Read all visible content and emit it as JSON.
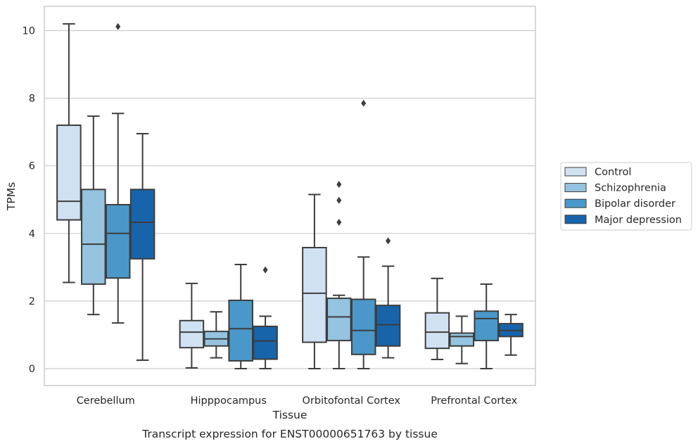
{
  "chart_data": {
    "type": "box",
    "title": "",
    "caption": "Transcript expression for ENST00000651763 by tissue",
    "xlabel": "Tissue",
    "ylabel": "TPMs",
    "ylim": [
      -0.5,
      10.7
    ],
    "yticks": [
      0,
      2,
      4,
      6,
      8,
      10
    ],
    "grid": "horizontal",
    "legend_position": "right",
    "categories": [
      "Cerebellum",
      "Hipppocampus",
      "Orbitofontal Cortex",
      "Prefrontal Cortex"
    ],
    "series": [
      {
        "name": "Control",
        "color": "#d0e1f2",
        "boxes": [
          {
            "whislo": 2.55,
            "q1": 4.4,
            "med": 4.95,
            "q3": 7.2,
            "whishi": 10.2,
            "fliers": []
          },
          {
            "whislo": 0.02,
            "q1": 0.62,
            "med": 1.08,
            "q3": 1.42,
            "whishi": 2.52,
            "fliers": []
          },
          {
            "whislo": 0.0,
            "q1": 0.78,
            "med": 2.23,
            "q3": 3.58,
            "whishi": 5.15,
            "fliers": []
          },
          {
            "whislo": 0.27,
            "q1": 0.6,
            "med": 1.08,
            "q3": 1.65,
            "whishi": 2.67,
            "fliers": []
          }
        ]
      },
      {
        "name": "Schizophrenia",
        "color": "#94c4df",
        "boxes": [
          {
            "whislo": 1.6,
            "q1": 2.5,
            "med": 3.68,
            "q3": 5.3,
            "whishi": 7.47,
            "fliers": []
          },
          {
            "whislo": 0.32,
            "q1": 0.67,
            "med": 0.88,
            "q3": 1.1,
            "whishi": 1.68,
            "fliers": []
          },
          {
            "whislo": 0.0,
            "q1": 0.83,
            "med": 1.53,
            "q3": 2.08,
            "whishi": 2.17,
            "fliers": [
              4.33,
              4.98,
              5.45
            ]
          },
          {
            "whislo": 0.15,
            "q1": 0.67,
            "med": 0.95,
            "q3": 1.05,
            "whishi": 1.55,
            "fliers": []
          }
        ]
      },
      {
        "name": "Bipolar disorder",
        "color": "#4a98c9",
        "boxes": [
          {
            "whislo": 1.35,
            "q1": 2.68,
            "med": 4.0,
            "q3": 4.85,
            "whishi": 7.55,
            "fliers": [
              10.12
            ]
          },
          {
            "whislo": 0.0,
            "q1": 0.23,
            "med": 1.18,
            "q3": 2.02,
            "whishi": 3.08,
            "fliers": []
          },
          {
            "whislo": 0.0,
            "q1": 0.42,
            "med": 1.13,
            "q3": 2.05,
            "whishi": 3.3,
            "fliers": [
              7.85
            ]
          },
          {
            "whislo": 0.0,
            "q1": 0.83,
            "med": 1.48,
            "q3": 1.7,
            "whishi": 2.5,
            "fliers": []
          }
        ]
      },
      {
        "name": "Major depression",
        "color": "#1764ab",
        "boxes": [
          {
            "whislo": 0.25,
            "q1": 3.25,
            "med": 4.33,
            "q3": 5.3,
            "whishi": 6.95,
            "fliers": []
          },
          {
            "whislo": 0.0,
            "q1": 0.28,
            "med": 0.82,
            "q3": 1.25,
            "whishi": 1.55,
            "fliers": [
              2.92
            ]
          },
          {
            "whislo": 0.32,
            "q1": 0.67,
            "med": 1.3,
            "q3": 1.87,
            "whishi": 3.03,
            "fliers": [
              3.78
            ]
          },
          {
            "whislo": 0.4,
            "q1": 0.95,
            "med": 1.13,
            "q3": 1.33,
            "whishi": 1.6,
            "fliers": []
          }
        ]
      }
    ]
  }
}
